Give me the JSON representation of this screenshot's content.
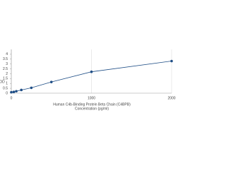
{
  "chart_data": {
    "type": "line",
    "x_label": [
      "Human C4b-Binding Protein Beta Chain (C4BPB)",
      "Concentration (pg/ml)"
    ],
    "y_label": "OD",
    "x": [
      0,
      31.25,
      62.5,
      125,
      250,
      500,
      1000,
      2000
    ],
    "series": [
      {
        "color": "#1f4e86",
        "values": [
          0.1,
          0.13,
          0.2,
          0.33,
          0.55,
          1.15,
          2.2,
          3.3
        ]
      }
    ],
    "xlim": [
      0,
      2000
    ],
    "xticks": [
      0,
      1000,
      2000
    ],
    "ylim": [
      0,
      4.5
    ],
    "yticks": [
      0,
      0.5,
      1,
      1.5,
      2,
      2.5,
      3,
      3.5,
      4
    ],
    "grid": true
  }
}
